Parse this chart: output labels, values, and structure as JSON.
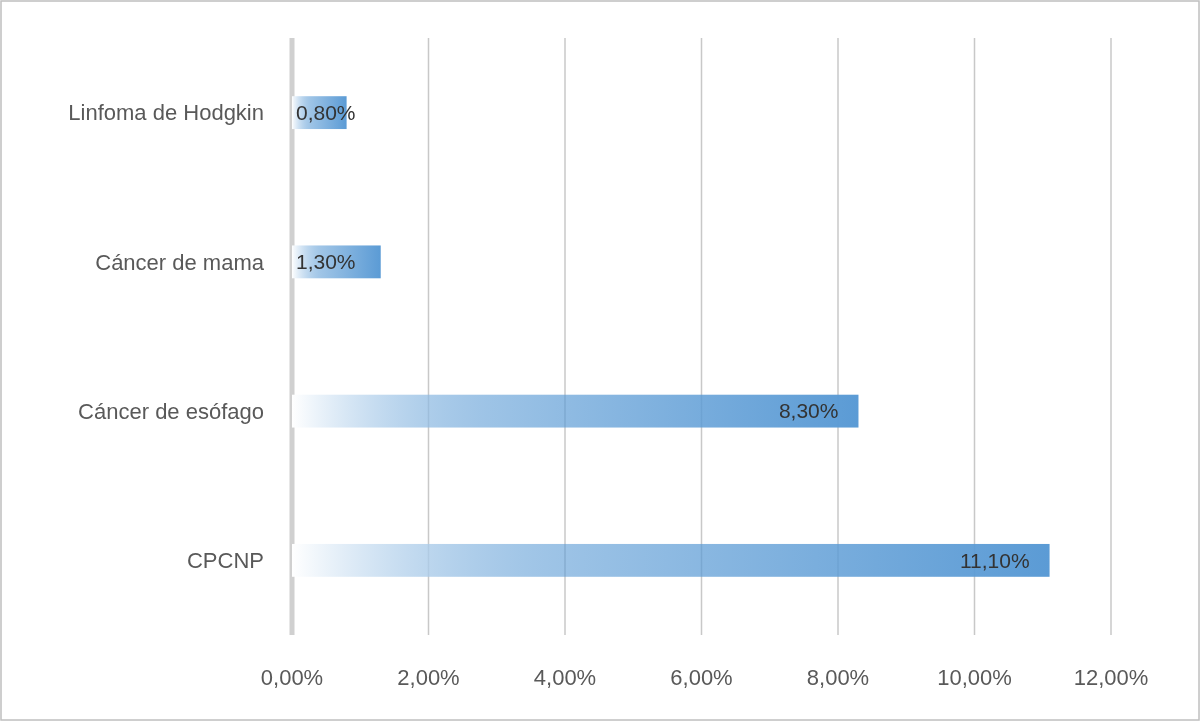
{
  "chart_data": {
    "type": "bar",
    "orientation": "horizontal",
    "categories": [
      "Linfoma de Hodgkin",
      "Cáncer de mama",
      "Cáncer de esófago",
      "CPCNP"
    ],
    "values": [
      0.8,
      1.3,
      8.3,
      11.1
    ],
    "value_labels": [
      "0,80%",
      "1,30%",
      "8,30%",
      "11,10%"
    ],
    "color": "#5b9bd5",
    "xlim": [
      0,
      12
    ],
    "xticks": [
      {
        "value": 0,
        "label": "0,00%"
      },
      {
        "value": 2,
        "label": "2,00%"
      },
      {
        "value": 4,
        "label": "4,00%"
      },
      {
        "value": 6,
        "label": "6,00%"
      },
      {
        "value": 8,
        "label": "8,00%"
      },
      {
        "value": 10,
        "label": "10,00%"
      },
      {
        "value": 12,
        "label": "12,00%"
      }
    ],
    "grid": "x"
  }
}
